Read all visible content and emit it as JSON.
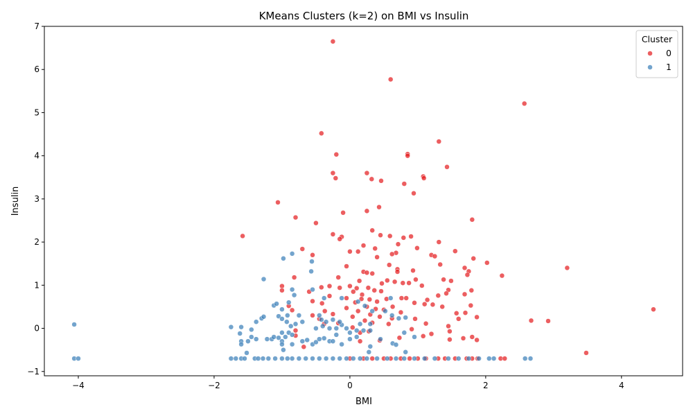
{
  "chart_data": {
    "type": "scatter",
    "title": "KMeans Clusters (k=2) on BMI vs Insulin",
    "xlabel": "BMI",
    "ylabel": "Insulin",
    "xlim": [
      -4.5,
      4.9
    ],
    "ylim": [
      -1.1,
      7.0
    ],
    "xticks": [
      -4,
      -2,
      0,
      2,
      4
    ],
    "yticks": [
      -1,
      0,
      1,
      2,
      3,
      4,
      5,
      6,
      7
    ],
    "grid": false,
    "legend": {
      "title": "Cluster",
      "placement": "top-right"
    },
    "series": [
      {
        "name": "0",
        "color": "#e41a1c",
        "points": [
          [
            -0.25,
            6.65
          ],
          [
            0.6,
            5.77
          ],
          [
            2.57,
            5.21
          ],
          [
            -0.42,
            4.52
          ],
          [
            1.31,
            4.33
          ],
          [
            -0.2,
            4.03
          ],
          [
            0.85,
            4.04
          ],
          [
            0.85,
            4.0
          ],
          [
            1.43,
            3.74
          ],
          [
            -0.25,
            3.6
          ],
          [
            0.25,
            3.6
          ],
          [
            -0.21,
            3.48
          ],
          [
            0.32,
            3.46
          ],
          [
            0.46,
            3.42
          ],
          [
            1.08,
            3.52
          ],
          [
            1.09,
            3.48
          ],
          [
            0.8,
            3.35
          ],
          [
            0.94,
            3.13
          ],
          [
            -1.06,
            2.92
          ],
          [
            0.25,
            2.72
          ],
          [
            -0.1,
            2.68
          ],
          [
            0.43,
            2.81
          ],
          [
            -0.8,
            2.57
          ],
          [
            1.8,
            2.52
          ],
          [
            -0.5,
            2.44
          ],
          [
            0.33,
            2.27
          ],
          [
            -0.25,
            2.18
          ],
          [
            0.45,
            2.16
          ],
          [
            -1.58,
            2.14
          ],
          [
            0.59,
            2.14
          ],
          [
            0.9,
            2.13
          ],
          [
            -0.12,
            2.12
          ],
          [
            0.79,
            2.1
          ],
          [
            -0.15,
            2.07
          ],
          [
            1.31,
            2.0
          ],
          [
            0.71,
            1.95
          ],
          [
            0.2,
            1.92
          ],
          [
            0.99,
            1.86
          ],
          [
            -0.7,
            1.84
          ],
          [
            0.37,
            1.85
          ],
          [
            0.0,
            1.78
          ],
          [
            0.12,
            1.78
          ],
          [
            0.68,
            1.75
          ],
          [
            1.55,
            1.79
          ],
          [
            -0.55,
            1.7
          ],
          [
            0.62,
            1.72
          ],
          [
            1.2,
            1.7
          ],
          [
            1.25,
            1.67
          ],
          [
            1.82,
            1.62
          ],
          [
            0.4,
            1.65
          ],
          [
            2.02,
            1.52
          ],
          [
            1.33,
            1.48
          ],
          [
            0.58,
            1.47
          ],
          [
            -0.05,
            1.44
          ],
          [
            1.69,
            1.4
          ],
          [
            3.2,
            1.4
          ],
          [
            0.7,
            1.37
          ],
          [
            0.93,
            1.34
          ],
          [
            1.75,
            1.32
          ],
          [
            0.2,
            1.31
          ],
          [
            0.7,
            1.31
          ],
          [
            0.33,
            1.27
          ],
          [
            0.25,
            1.29
          ],
          [
            1.73,
            1.24
          ],
          [
            2.24,
            1.22
          ],
          [
            -0.82,
            1.18
          ],
          [
            -0.17,
            1.18
          ],
          [
            0.97,
            1.13
          ],
          [
            1.38,
            1.13
          ],
          [
            0.55,
            1.11
          ],
          [
            0.14,
            1.1
          ],
          [
            1.49,
            1.1
          ],
          [
            0.66,
            1.08
          ],
          [
            0.78,
            1.05
          ],
          [
            0.87,
            1.05
          ],
          [
            0.47,
            1.04
          ],
          [
            -0.3,
            0.98
          ],
          [
            0.0,
            0.98
          ],
          [
            1.06,
            0.99
          ],
          [
            -1.0,
            0.98
          ],
          [
            0.1,
            0.93
          ],
          [
            0.27,
            0.94
          ],
          [
            -0.42,
            0.95
          ],
          [
            -0.15,
            0.94
          ],
          [
            1.45,
            0.89
          ],
          [
            -1.0,
            0.88
          ],
          [
            0.36,
            0.88
          ],
          [
            1.79,
            0.88
          ],
          [
            -0.6,
            0.85
          ],
          [
            0.05,
            0.85
          ],
          [
            0.46,
            0.86
          ],
          [
            1.42,
            0.81
          ],
          [
            0.18,
            0.78
          ],
          [
            1.3,
            0.76
          ],
          [
            -0.3,
            0.75
          ],
          [
            0.76,
            0.7
          ],
          [
            1.69,
            0.79
          ],
          [
            -0.05,
            0.7
          ],
          [
            0.17,
            0.68
          ],
          [
            0.29,
            0.67
          ],
          [
            0.54,
            0.68
          ],
          [
            0.83,
            0.7
          ],
          [
            1.14,
            0.66
          ],
          [
            -0.55,
            0.63
          ],
          [
            0.4,
            0.62
          ],
          [
            0.08,
            0.6
          ],
          [
            0.95,
            0.59
          ],
          [
            -0.41,
            0.58
          ],
          [
            1.1,
            0.56
          ],
          [
            1.22,
            0.55
          ],
          [
            1.78,
            0.53
          ],
          [
            -0.9,
            0.52
          ],
          [
            0.25,
            0.5
          ],
          [
            0.63,
            0.5
          ],
          [
            1.36,
            0.5
          ],
          [
            -0.05,
            0.47
          ],
          [
            0.38,
            0.45
          ],
          [
            4.47,
            0.44
          ],
          [
            0.5,
            0.43
          ],
          [
            -0.85,
            0.42
          ],
          [
            -0.37,
            0.4
          ],
          [
            0.12,
            0.4
          ],
          [
            0.75,
            0.37
          ],
          [
            1.57,
            0.35
          ],
          [
            -0.25,
            0.33
          ],
          [
            0.3,
            0.32
          ],
          [
            1.7,
            0.36
          ],
          [
            -0.55,
            0.3
          ],
          [
            0.04,
            0.27
          ],
          [
            0.44,
            0.27
          ],
          [
            1.87,
            0.26
          ],
          [
            -0.45,
            0.22
          ],
          [
            0.62,
            0.23
          ],
          [
            0.96,
            0.22
          ],
          [
            1.6,
            0.22
          ],
          [
            0.22,
            0.18
          ],
          [
            2.67,
            0.18
          ],
          [
            2.92,
            0.17
          ],
          [
            -0.17,
            0.12
          ],
          [
            0.33,
            0.13
          ],
          [
            1.12,
            0.11
          ],
          [
            -0.38,
            0.1
          ],
          [
            0.57,
            0.1
          ],
          [
            1.45,
            0.05
          ],
          [
            0.04,
            0.02
          ],
          [
            0.91,
            -0.02
          ],
          [
            -0.8,
            -0.05
          ],
          [
            0.28,
            -0.07
          ],
          [
            1.47,
            -0.07
          ],
          [
            0.15,
            -0.1
          ],
          [
            1.2,
            -0.13
          ],
          [
            -0.8,
            -0.17
          ],
          [
            1.08,
            -0.18
          ],
          [
            1.8,
            -0.2
          ],
          [
            0.73,
            -0.22
          ],
          [
            1.67,
            -0.23
          ],
          [
            1.47,
            -0.26
          ],
          [
            1.87,
            -0.27
          ],
          [
            0.44,
            -0.28
          ],
          [
            0.15,
            -0.3
          ],
          [
            -0.68,
            -0.43
          ],
          [
            3.48,
            -0.57
          ],
          [
            0.0,
            -0.7
          ],
          [
            0.2,
            -0.7
          ],
          [
            0.33,
            -0.7
          ],
          [
            0.5,
            -0.7
          ],
          [
            0.6,
            -0.7
          ],
          [
            0.75,
            -0.7
          ],
          [
            0.88,
            -0.7
          ],
          [
            1.0,
            -0.7
          ],
          [
            1.12,
            -0.7
          ],
          [
            1.3,
            -0.7
          ],
          [
            1.4,
            -0.7
          ],
          [
            1.55,
            -0.7
          ],
          [
            1.72,
            -0.7
          ],
          [
            1.8,
            -0.7
          ],
          [
            1.88,
            -0.7
          ],
          [
            2.22,
            -0.7
          ],
          [
            2.28,
            -0.7
          ]
        ]
      },
      {
        "name": "1",
        "color": "#377eb8",
        "points": [
          [
            -4.06,
            0.09
          ],
          [
            -1.75,
            0.03
          ],
          [
            -1.6,
            0.03
          ],
          [
            -1.62,
            -0.12
          ],
          [
            -1.45,
            -0.03
          ],
          [
            -1.38,
            0.15
          ],
          [
            -1.3,
            0.23
          ],
          [
            -1.27,
            0.27
          ],
          [
            -1.27,
            1.14
          ],
          [
            -0.98,
            1.62
          ],
          [
            -0.85,
            1.73
          ],
          [
            -0.56,
            1.55
          ],
          [
            -0.57,
            1.32
          ],
          [
            -0.55,
            0.9
          ],
          [
            -0.85,
            0.9
          ],
          [
            -0.82,
            0.77
          ],
          [
            -1.12,
            0.53
          ],
          [
            -1.08,
            0.57
          ],
          [
            -0.9,
            0.6
          ],
          [
            -1.0,
            0.44
          ],
          [
            -0.75,
            0.3
          ],
          [
            -0.92,
            0.3
          ],
          [
            -1.05,
            0.28
          ],
          [
            -1.0,
            0.22
          ],
          [
            -0.93,
            0.15
          ],
          [
            -0.7,
            0.15
          ],
          [
            -0.8,
            0.1
          ],
          [
            -0.87,
            0.05
          ],
          [
            -0.9,
            -0.1
          ],
          [
            -0.95,
            -0.2
          ],
          [
            -1.05,
            -0.22
          ],
          [
            -1.15,
            -0.25
          ],
          [
            -1.22,
            -0.25
          ],
          [
            -1.38,
            -0.25
          ],
          [
            -1.45,
            -0.2
          ],
          [
            -1.5,
            -0.3
          ],
          [
            -1.6,
            -0.3
          ],
          [
            -1.6,
            -0.37
          ],
          [
            -1.52,
            -0.57
          ],
          [
            -1.0,
            -0.3
          ],
          [
            -1.0,
            -0.37
          ],
          [
            -0.98,
            -0.5
          ],
          [
            -0.85,
            -0.37
          ],
          [
            -0.7,
            -0.3
          ],
          [
            -0.63,
            -0.27
          ],
          [
            -0.55,
            -0.37
          ],
          [
            -0.5,
            -0.32
          ],
          [
            -0.45,
            -0.25
          ],
          [
            -0.38,
            -0.23
          ],
          [
            -0.3,
            -0.3
          ],
          [
            -0.25,
            -0.3
          ],
          [
            -0.12,
            -0.37
          ],
          [
            -0.5,
            0.0
          ],
          [
            -0.4,
            0.05
          ],
          [
            -0.3,
            0.0
          ],
          [
            -0.2,
            0.0
          ],
          [
            -0.12,
            0.08
          ],
          [
            -0.05,
            0.0
          ],
          [
            0.0,
            -0.1
          ],
          [
            0.1,
            -0.05
          ],
          [
            0.2,
            -0.05
          ],
          [
            0.3,
            -0.05
          ],
          [
            -0.45,
            0.3
          ],
          [
            -0.42,
            0.2
          ],
          [
            -0.35,
            0.15
          ],
          [
            -0.25,
            0.2
          ],
          [
            -0.15,
            0.15
          ],
          [
            -0.38,
            0.7
          ],
          [
            -0.12,
            0.7
          ],
          [
            0.12,
            0.62
          ],
          [
            0.22,
            0.52
          ],
          [
            0.33,
            0.4
          ],
          [
            0.52,
            0.4
          ],
          [
            0.62,
            0.3
          ],
          [
            0.6,
            0.7
          ],
          [
            0.72,
            0.23
          ],
          [
            0.82,
            0.25
          ],
          [
            0.63,
            -0.35
          ],
          [
            0.68,
            -0.38
          ],
          [
            0.3,
            -0.42
          ],
          [
            0.1,
            -0.2
          ],
          [
            0.0,
            -0.25
          ],
          [
            -0.2,
            -0.15
          ],
          [
            0.8,
            -0.1
          ],
          [
            0.95,
            -0.2
          ],
          [
            0.45,
            -0.25
          ],
          [
            0.3,
            0.1
          ],
          [
            0.15,
            0.1
          ],
          [
            0.28,
            -0.55
          ],
          [
            0.82,
            -0.55
          ],
          [
            -1.0,
            -0.1
          ],
          [
            -0.85,
            -0.15
          ],
          [
            -1.12,
            -0.2
          ],
          [
            -4.06,
            -0.7
          ],
          [
            -4.0,
            -0.7
          ],
          [
            -1.75,
            -0.7
          ],
          [
            -1.68,
            -0.7
          ],
          [
            -1.6,
            -0.7
          ],
          [
            -1.55,
            -0.7
          ],
          [
            -1.4,
            -0.7
          ],
          [
            -1.35,
            -0.7
          ],
          [
            -1.28,
            -0.7
          ],
          [
            -1.2,
            -0.7
          ],
          [
            -1.1,
            -0.7
          ],
          [
            -1.0,
            -0.7
          ],
          [
            -0.92,
            -0.7
          ],
          [
            -0.85,
            -0.7
          ],
          [
            -0.75,
            -0.7
          ],
          [
            -0.65,
            -0.7
          ],
          [
            -0.55,
            -0.7
          ],
          [
            -0.45,
            -0.7
          ],
          [
            -0.35,
            -0.7
          ],
          [
            -0.25,
            -0.7
          ],
          [
            -0.15,
            -0.7
          ],
          [
            -0.05,
            -0.7
          ],
          [
            0.05,
            -0.7
          ],
          [
            0.15,
            -0.7
          ],
          [
            0.25,
            -0.7
          ],
          [
            0.4,
            -0.7
          ],
          [
            0.55,
            -0.7
          ],
          [
            0.68,
            -0.7
          ],
          [
            0.8,
            -0.7
          ],
          [
            0.95,
            -0.7
          ],
          [
            1.1,
            -0.7
          ],
          [
            1.25,
            -0.7
          ],
          [
            1.45,
            -0.7
          ],
          [
            1.6,
            -0.7
          ],
          [
            1.75,
            -0.7
          ],
          [
            1.9,
            -0.7
          ],
          [
            2.05,
            -0.7
          ],
          [
            2.12,
            -0.7
          ],
          [
            2.58,
            -0.7
          ],
          [
            2.66,
            -0.7
          ]
        ]
      }
    ]
  }
}
